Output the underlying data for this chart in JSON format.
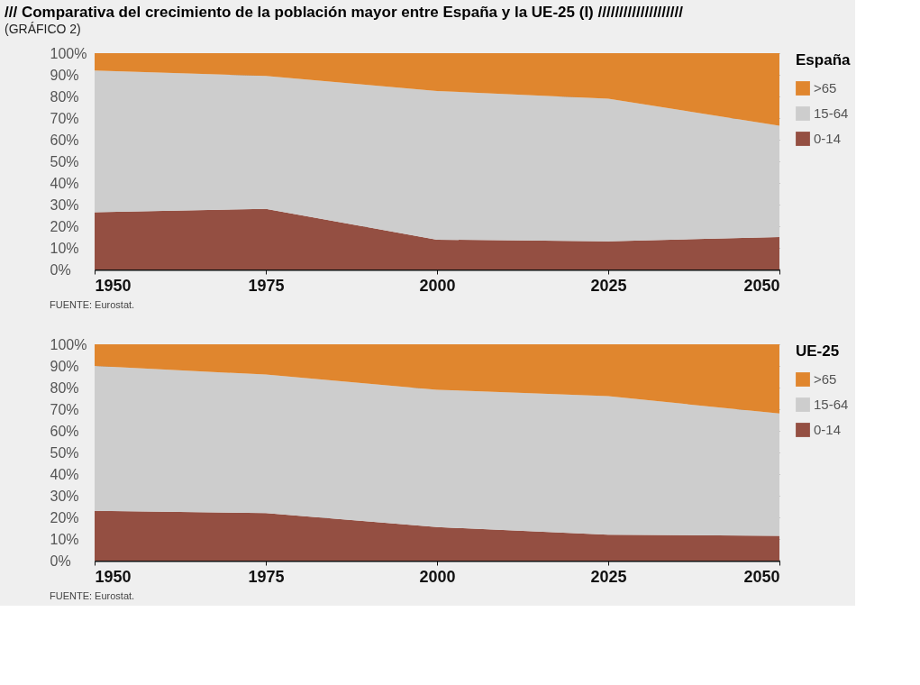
{
  "chart_data": [
    {
      "type": "area",
      "title": "/// Comparativa del crecimiento de la población mayor entre España y la UE-25 (I) ////////////////////",
      "subtitle": "(GRÁFICO 2)",
      "legend_title": "España",
      "x": [
        1950,
        1975,
        2000,
        2025,
        2050
      ],
      "stacked": true,
      "series": [
        {
          "name": "0-14",
          "color": "#944f42",
          "values": [
            26.5,
            28,
            13.8,
            13,
            15
          ]
        },
        {
          "name": "15-64",
          "color": "#cdcdcd",
          "values": [
            65.5,
            61.5,
            68.7,
            66,
            51.5
          ]
        },
        {
          "name": ">65",
          "color": "#e0862e",
          "values": [
            8,
            10.5,
            17.5,
            21,
            33.5
          ]
        }
      ],
      "xlim": [
        1950,
        2050
      ],
      "xticks": [
        1950,
        1975,
        2000,
        2025,
        2050
      ],
      "ylim": [
        0,
        100
      ],
      "yticks": [
        {
          "value": 0,
          "label": "0%"
        },
        {
          "value": 10,
          "label": "10%"
        },
        {
          "value": 20,
          "label": "20%"
        },
        {
          "value": 30,
          "label": "30%"
        },
        {
          "value": 40,
          "label": "40%"
        },
        {
          "value": 50,
          "label": "50%"
        },
        {
          "value": 60,
          "label": "60%"
        },
        {
          "value": 70,
          "label": "70%"
        },
        {
          "value": 80,
          "label": "80%"
        },
        {
          "value": 90,
          "label": "90%"
        },
        {
          "value": 100,
          "label": "100%"
        }
      ],
      "grid": "y",
      "legend": "top right",
      "annotations": [
        "FUENTE: Eurostat."
      ]
    },
    {
      "type": "area",
      "legend_title": "UE-25",
      "x": [
        1950,
        1975,
        2000,
        2025,
        2050
      ],
      "stacked": true,
      "series": [
        {
          "name": "0-14",
          "color": "#944f42",
          "values": [
            23,
            22,
            15.5,
            12,
            11.5
          ]
        },
        {
          "name": "15-64",
          "color": "#cdcdcd",
          "values": [
            67,
            64,
            63.5,
            64,
            56.5
          ]
        },
        {
          "name": ">65",
          "color": "#e0862e",
          "values": [
            10,
            14,
            21,
            24,
            32
          ]
        }
      ],
      "xlim": [
        1950,
        2050
      ],
      "xticks": [
        1950,
        1975,
        2000,
        2025,
        2050
      ],
      "ylim": [
        0,
        100
      ],
      "yticks": [
        {
          "value": 0,
          "label": "0%"
        },
        {
          "value": 10,
          "label": "10%"
        },
        {
          "value": 20,
          "label": "20%"
        },
        {
          "value": 30,
          "label": "30%"
        },
        {
          "value": 40,
          "label": "40%"
        },
        {
          "value": 50,
          "label": "50%"
        },
        {
          "value": 60,
          "label": "60%"
        },
        {
          "value": 70,
          "label": "70%"
        },
        {
          "value": 80,
          "label": "80%"
        },
        {
          "value": 90,
          "label": "90%"
        },
        {
          "value": 100,
          "label": "100%"
        }
      ],
      "grid": "y",
      "legend": "top right",
      "annotations": [
        "FUENTE: Eurostat."
      ]
    }
  ]
}
